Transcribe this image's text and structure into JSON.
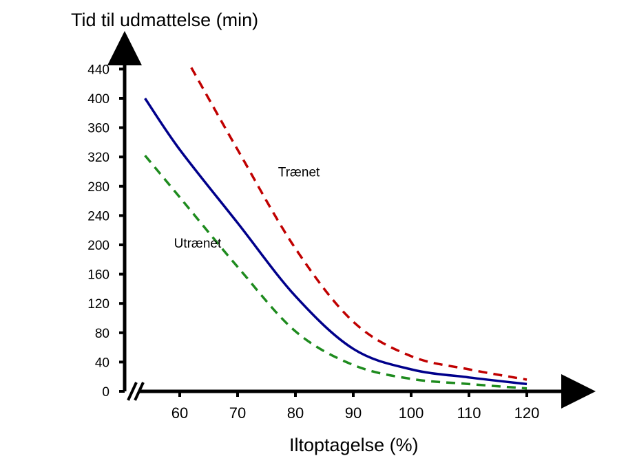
{
  "chart_data": {
    "type": "line",
    "ylabel": "Tid til udmattelse (min)",
    "xlabel": "Iltoptagelse  (%)",
    "x_ticks": [
      60,
      70,
      80,
      90,
      100,
      110,
      120
    ],
    "y_ticks": [
      0,
      40,
      80,
      120,
      160,
      200,
      240,
      280,
      320,
      360,
      400,
      440
    ],
    "xlim": [
      50,
      130
    ],
    "ylim": [
      0,
      470
    ],
    "axis_break": true,
    "grid": false,
    "series": [
      {
        "name": "",
        "color": "#00008B",
        "style": "solid",
        "points": [
          [
            54,
            400
          ],
          [
            60,
            330
          ],
          [
            70,
            230
          ],
          [
            80,
            130
          ],
          [
            90,
            58
          ],
          [
            100,
            30
          ],
          [
            110,
            19
          ],
          [
            120,
            10
          ]
        ]
      },
      {
        "name": "Trænet",
        "color": "#C00000",
        "style": "dashed",
        "points": [
          [
            62,
            442
          ],
          [
            70,
            330
          ],
          [
            80,
            195
          ],
          [
            90,
            95
          ],
          [
            100,
            48
          ],
          [
            110,
            30
          ],
          [
            120,
            16
          ]
        ]
      },
      {
        "name": "Utrænet",
        "color": "#1E8B1E",
        "style": "dashed",
        "points": [
          [
            54,
            322
          ],
          [
            60,
            265
          ],
          [
            70,
            170
          ],
          [
            80,
            82
          ],
          [
            90,
            36
          ],
          [
            100,
            17
          ],
          [
            110,
            10
          ],
          [
            120,
            4
          ]
        ]
      }
    ],
    "annotations": [
      {
        "text": "Trænet",
        "x": 77,
        "y": 300
      },
      {
        "text": "Utrænet",
        "x": 59,
        "y": 203
      }
    ]
  }
}
